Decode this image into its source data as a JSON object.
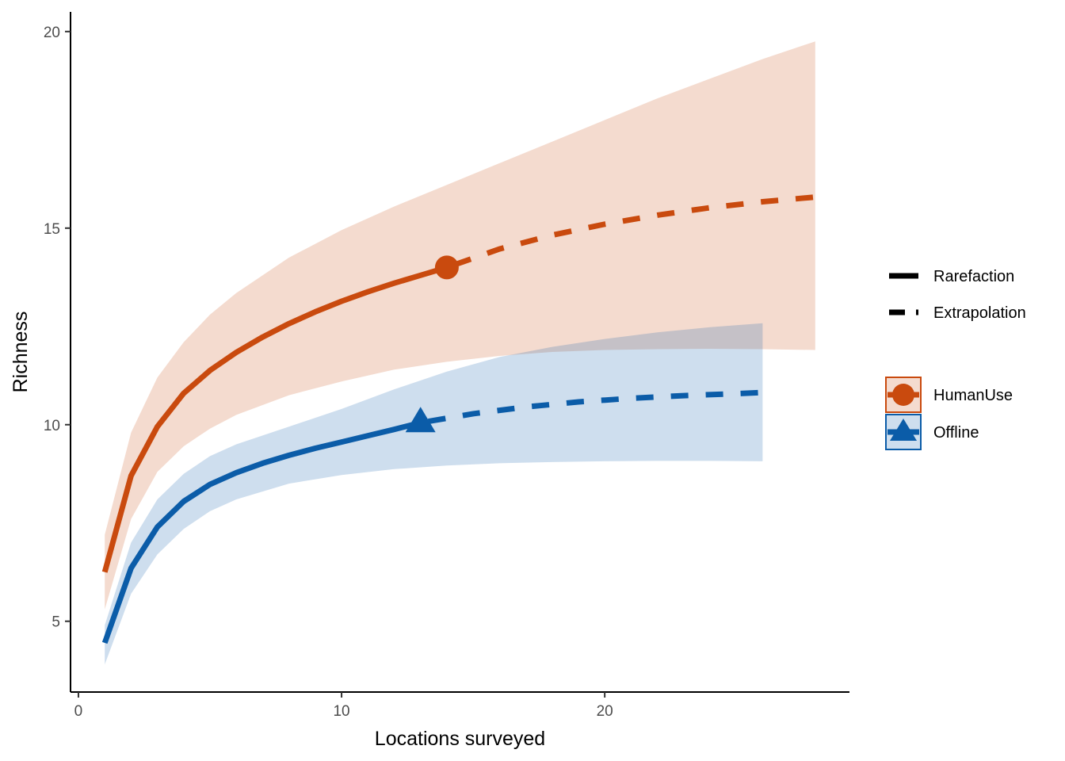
{
  "chart_data": {
    "type": "line",
    "title": "",
    "xlabel": "Locations surveyed",
    "ylabel": "Richness",
    "xlim": [
      -0.3,
      29.3
    ],
    "ylim": [
      3.2,
      20.5
    ],
    "x_ticks": [
      0,
      10,
      20
    ],
    "y_ticks": [
      5,
      10,
      15,
      20
    ],
    "grid": false,
    "legend_placement": "right",
    "linetype_legend": [
      {
        "label": "Rarefaction",
        "style": "solid"
      },
      {
        "label": "Extrapolation",
        "style": "dashed"
      }
    ],
    "series": [
      {
        "name": "HumanUse",
        "color": "#C94A0E",
        "fill": "#F5D9CC",
        "marker": "circle",
        "observed": {
          "x": 14,
          "y": 14.0
        },
        "rarefaction": {
          "x": [
            1,
            2,
            3,
            4,
            5,
            6,
            7,
            8,
            9,
            10,
            11,
            12,
            13,
            14
          ],
          "y": [
            6.25,
            8.7,
            9.95,
            10.8,
            11.38,
            11.84,
            12.23,
            12.57,
            12.87,
            13.14,
            13.38,
            13.6,
            13.8,
            14.0
          ]
        },
        "extrapolation": {
          "x": [
            14,
            16,
            18,
            20,
            22,
            24,
            26,
            28
          ],
          "y": [
            14.0,
            14.47,
            14.82,
            15.1,
            15.33,
            15.52,
            15.67,
            15.79
          ]
        },
        "ci_x": [
          1,
          2,
          3,
          4,
          5,
          6,
          8,
          10,
          12,
          14,
          16,
          18,
          20,
          22,
          24,
          26,
          28
        ],
        "ci_upper": [
          7.2,
          9.8,
          11.2,
          12.1,
          12.8,
          13.35,
          14.25,
          14.95,
          15.55,
          16.1,
          16.65,
          17.2,
          17.75,
          18.3,
          18.8,
          19.3,
          19.75
        ],
        "ci_lower": [
          5.3,
          7.6,
          8.8,
          9.45,
          9.9,
          10.25,
          10.75,
          11.1,
          11.4,
          11.6,
          11.75,
          11.85,
          11.9,
          11.92,
          11.93,
          11.92,
          11.9
        ]
      },
      {
        "name": "Offline",
        "color": "#0B5CA8",
        "fill": "#CCDFEC",
        "marker": "triangle",
        "observed": {
          "x": 13,
          "y": 10.05
        },
        "rarefaction": {
          "x": [
            1,
            2,
            3,
            4,
            5,
            6,
            7,
            8,
            9,
            10,
            11,
            12,
            13
          ],
          "y": [
            4.45,
            6.35,
            7.4,
            8.05,
            8.48,
            8.78,
            9.02,
            9.22,
            9.4,
            9.56,
            9.72,
            9.88,
            10.05
          ]
        },
        "extrapolation": {
          "x": [
            13,
            15,
            17,
            19,
            21,
            23,
            25,
            26
          ],
          "y": [
            10.05,
            10.28,
            10.45,
            10.58,
            10.67,
            10.74,
            10.79,
            10.82
          ]
        },
        "ci_x": [
          1,
          2,
          3,
          4,
          5,
          6,
          8,
          10,
          12,
          14,
          16,
          18,
          20,
          22,
          24,
          26
        ],
        "ci_upper": [
          4.9,
          7.0,
          8.1,
          8.75,
          9.2,
          9.5,
          9.95,
          10.4,
          10.9,
          11.35,
          11.72,
          11.98,
          12.18,
          12.35,
          12.48,
          12.58
        ],
        "ci_lower": [
          3.9,
          5.7,
          6.7,
          7.35,
          7.8,
          8.1,
          8.5,
          8.72,
          8.87,
          8.96,
          9.02,
          9.05,
          9.07,
          9.08,
          9.08,
          9.07
        ]
      }
    ]
  }
}
